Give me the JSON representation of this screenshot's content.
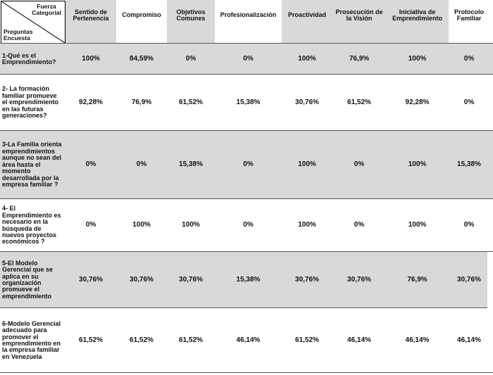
{
  "header": {
    "corner_top": "Fuerza Categorial",
    "corner_bottom": "Preguntas Encuesta",
    "columns": [
      "Sentido de Pertenencia",
      "Compromiso",
      "Objetivos Comunes",
      "Profesionalización",
      "Proactividad",
      "Prosecución de la Visión",
      "Iniciativa de Emprendimiento",
      "Protocolo Familiar"
    ]
  },
  "table": {
    "rows": [
      {
        "question": "1-Qué es el Emprendimiento?",
        "values": [
          "100%",
          "84,59%",
          "0%",
          "0%",
          "100%",
          "76,9%",
          "100%",
          "0%"
        ]
      },
      {
        "question": "2- La formación familiar promueve el emprendimiento en las futuras generaciones?",
        "values": [
          "92,28%",
          "76,9%",
          "61,52%",
          "15,38%",
          "30,76%",
          "61,52%",
          "92,28%",
          "0%"
        ]
      },
      {
        "question": "3-La Familia orienta emprendimientos aunque no sean del área hasta el momento desarrollada por la empresa familiar ?",
        "values": [
          "0%",
          "0%",
          "15,38%",
          "0%",
          "100%",
          "0%",
          "100%",
          "15,38%"
        ]
      },
      {
        "question": "4- El Emprendimiento es necesario en la búsqueda de nuevos proyectos económicos ?",
        "values": [
          "0%",
          "100%",
          "100%",
          "0%",
          "100%",
          "0%",
          "100%",
          "0%"
        ]
      },
      {
        "question": "5-El Modelo Gerencial que se aplica en su organización promueve el emprendimiento",
        "values": [
          "30,76%",
          "30,76%",
          "30,76%",
          "15,38%",
          "30,76%",
          "30,76%",
          "76,9%",
          "30,76%"
        ]
      },
      {
        "question": "6-Modelo Gerencial adecuado para promover el emprendimiento en la empresa familiar en Venezuela",
        "values": [
          "61,52%",
          "61,52%",
          "61,52%",
          "46,14%",
          "61,52%",
          "46,14%",
          "46,14%",
          "46,14%"
        ]
      }
    ]
  }
}
